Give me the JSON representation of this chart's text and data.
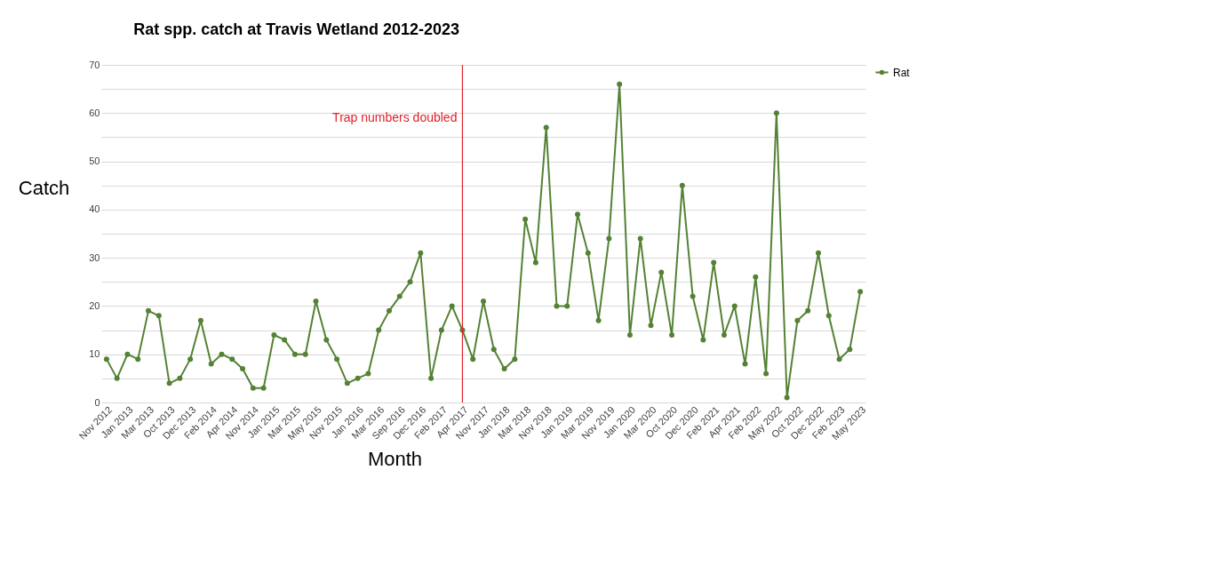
{
  "chart_data": {
    "type": "line",
    "title": "Rat spp. catch at Travis Wetland 2012-2023",
    "xlabel": "Month",
    "ylabel": "Catch",
    "categories": [
      "Nov 2012",
      null,
      "Jan 2013",
      null,
      "Mar 2013",
      null,
      "Oct 2013",
      null,
      "Dec 2013",
      null,
      "Feb 2014",
      null,
      "Apr 2014",
      null,
      "Nov 2014",
      null,
      "Jan 2015",
      null,
      "Mar 2015",
      null,
      "May 2015",
      null,
      "Nov 2015",
      null,
      "Jan 2016",
      null,
      "Mar 2016",
      null,
      "Sep 2016",
      null,
      "Dec 2016",
      null,
      "Feb 2017",
      null,
      "Apr 2017",
      null,
      "Nov 2017",
      null,
      "Jan 2018",
      null,
      "Mar 2018",
      null,
      "Nov 2018",
      null,
      "Jan 2019",
      null,
      "Mar 2019",
      null,
      "Nov 2019",
      null,
      "Jan 2020",
      null,
      "Mar 2020",
      null,
      "Oct 2020",
      null,
      "Dec 2020",
      null,
      "Feb 2021",
      null,
      "Apr 2021",
      null,
      "Feb 2022",
      null,
      "May 2022",
      null,
      "Oct 2022",
      null,
      "Dec 2022",
      null,
      "Feb 2023",
      null,
      "May 2023"
    ],
    "series": [
      {
        "name": "Rat",
        "color": "#548235",
        "values": [
          9,
          5,
          10,
          9,
          19,
          18,
          4,
          5,
          9,
          17,
          8,
          10,
          9,
          7,
          3,
          3,
          14,
          13,
          10,
          10,
          21,
          13,
          9,
          4,
          5,
          6,
          15,
          19,
          22,
          25,
          31,
          5,
          15,
          20,
          15,
          9,
          21,
          11,
          7,
          9,
          38,
          29,
          57,
          20,
          20,
          39,
          31,
          17,
          34,
          66,
          14,
          34,
          16,
          27,
          14,
          45,
          22,
          13,
          29,
          14,
          20,
          8,
          26,
          6,
          60,
          1,
          17,
          19,
          31,
          18,
          9,
          11,
          23
        ]
      }
    ],
    "ylim": [
      0,
      70
    ],
    "yticks": [
      0,
      {
        "value": 5,
        "label": null
      },
      10,
      {
        "value": 15,
        "label": null
      },
      20,
      {
        "value": 25,
        "label": null
      },
      30,
      {
        "value": 35,
        "label": null
      },
      40,
      {
        "value": 45,
        "label": null
      },
      50,
      {
        "value": 55,
        "label": null
      },
      60,
      {
        "value": 65,
        "label": null
      },
      70
    ],
    "ref_lines": [
      {
        "axis": "x",
        "value": "Apr 2017",
        "label": "Trap numbers doubled",
        "color": "#e0202a"
      }
    ],
    "grid": "y",
    "legend": "right",
    "marker": "circle",
    "line_style": "solid"
  }
}
